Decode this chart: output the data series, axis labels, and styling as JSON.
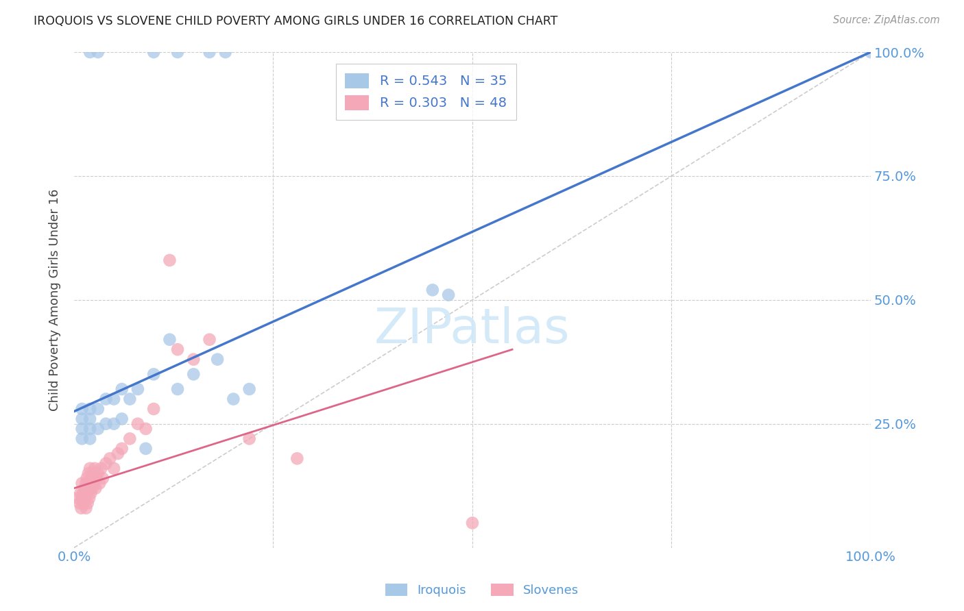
{
  "title": "IROQUOIS VS SLOVENE CHILD POVERTY AMONG GIRLS UNDER 16 CORRELATION CHART",
  "source": "Source: ZipAtlas.com",
  "ylabel": "Child Poverty Among Girls Under 16",
  "iroquois_R": 0.543,
  "iroquois_N": 35,
  "slovene_R": 0.303,
  "slovene_N": 48,
  "iroquois_color": "#a8c8e8",
  "slovene_color": "#f4a8b8",
  "trendline_iroquois_color": "#4477cc",
  "trendline_slovene_color": "#dd6688",
  "diagonal_color": "#cccccc",
  "background_color": "#ffffff",
  "grid_color": "#cccccc",
  "axis_label_color": "#5599dd",
  "title_color": "#222222",
  "watermark_color": "#d0e8f8",
  "iroquois_x": [
    0.01,
    0.01,
    0.01,
    0.01,
    0.02,
    0.02,
    0.02,
    0.02,
    0.03,
    0.03,
    0.04,
    0.04,
    0.05,
    0.05,
    0.06,
    0.06,
    0.07,
    0.08,
    0.09,
    0.1,
    0.12,
    0.13,
    0.15,
    0.18,
    0.2,
    0.22,
    0.45,
    0.47,
    1.0,
    0.02,
    0.03,
    0.1,
    0.13,
    0.17,
    0.19
  ],
  "iroquois_y": [
    0.22,
    0.24,
    0.26,
    0.28,
    0.22,
    0.24,
    0.26,
    0.28,
    0.24,
    0.28,
    0.25,
    0.3,
    0.25,
    0.3,
    0.26,
    0.32,
    0.3,
    0.32,
    0.2,
    0.35,
    0.42,
    0.32,
    0.35,
    0.38,
    0.3,
    0.32,
    0.52,
    0.51,
    1.0,
    1.0,
    1.0,
    1.0,
    1.0,
    1.0,
    1.0
  ],
  "slovene_x": [
    0.005,
    0.007,
    0.008,
    0.009,
    0.01,
    0.01,
    0.011,
    0.012,
    0.013,
    0.014,
    0.015,
    0.015,
    0.016,
    0.016,
    0.017,
    0.018,
    0.018,
    0.019,
    0.02,
    0.02,
    0.021,
    0.022,
    0.023,
    0.024,
    0.025,
    0.026,
    0.027,
    0.028,
    0.03,
    0.032,
    0.034,
    0.036,
    0.04,
    0.045,
    0.05,
    0.055,
    0.06,
    0.07,
    0.08,
    0.09,
    0.1,
    0.12,
    0.13,
    0.15,
    0.17,
    0.22,
    0.28,
    0.5
  ],
  "slovene_y": [
    0.1,
    0.09,
    0.11,
    0.08,
    0.1,
    0.13,
    0.11,
    0.09,
    0.12,
    0.1,
    0.13,
    0.08,
    0.11,
    0.14,
    0.09,
    0.12,
    0.15,
    0.1,
    0.13,
    0.16,
    0.11,
    0.14,
    0.12,
    0.15,
    0.13,
    0.16,
    0.12,
    0.14,
    0.15,
    0.13,
    0.16,
    0.14,
    0.17,
    0.18,
    0.16,
    0.19,
    0.2,
    0.22,
    0.25,
    0.24,
    0.28,
    0.58,
    0.4,
    0.38,
    0.42,
    0.22,
    0.18,
    0.05
  ],
  "xlim": [
    0.0,
    1.0
  ],
  "ylim": [
    0.0,
    1.0
  ],
  "xtick_positions": [
    0.0,
    0.25,
    0.5,
    0.75,
    1.0
  ],
  "xticklabels": [
    "0.0%",
    "",
    "",
    "",
    "100.0%"
  ],
  "ytick_positions": [
    0.25,
    0.5,
    0.75,
    1.0
  ],
  "yticklabels_right": [
    "25.0%",
    "50.0%",
    "75.0%",
    "100.0%"
  ]
}
